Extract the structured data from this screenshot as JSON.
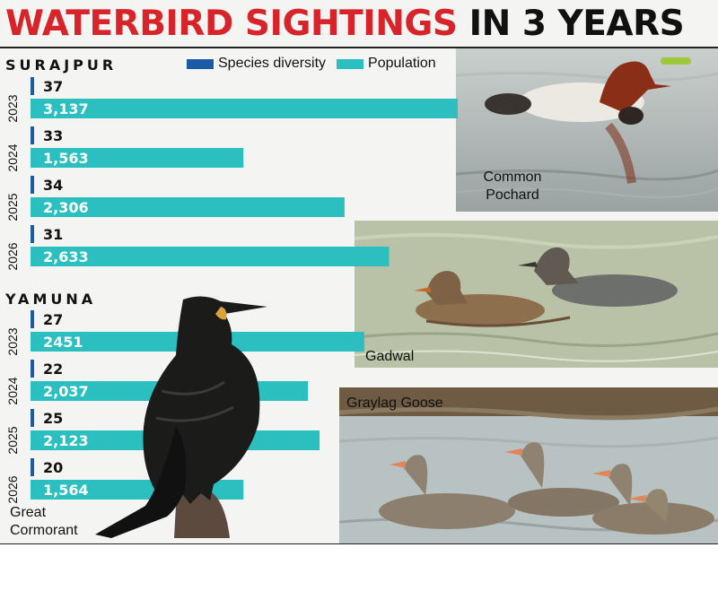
{
  "title": {
    "part1": "WATERBIRD SIGHTINGS",
    "part2": "IN 3 YEARS"
  },
  "legend": {
    "diversity": "Species diversity",
    "population": "Population"
  },
  "colors": {
    "diversity": "#1a5aa6",
    "population": "#2bbfbf",
    "title_red": "#d7232a"
  },
  "photos": {
    "pochard": "Common\nPochard",
    "gadwal": "Gadwal",
    "graylag": "Graylag Goose",
    "cormorant": "Great\nCormorant"
  },
  "chart_data": {
    "type": "bar",
    "orientation": "horizontal",
    "groups": [
      {
        "name": "SURAJPUR",
        "categories": [
          "2023",
          "2024",
          "2025",
          "2026"
        ],
        "series": [
          {
            "name": "Species diversity",
            "values": [
              37,
              33,
              34,
              31
            ],
            "labels": [
              "37",
              "33",
              "34",
              "31"
            ]
          },
          {
            "name": "Population",
            "values": [
              3137,
              1563,
              2306,
              2633
            ],
            "labels": [
              "3,137",
              "1,563",
              "2,306",
              "2,633"
            ]
          }
        ]
      },
      {
        "name": "YAMUNA",
        "categories": [
          "2023",
          "2024",
          "2025",
          "2026"
        ],
        "series": [
          {
            "name": "Species diversity",
            "values": [
              27,
              22,
              25,
              20
            ],
            "labels": [
              "27",
              "22",
              "25",
              "20"
            ]
          },
          {
            "name": "Population",
            "values": [
              2451,
              2037,
              2123,
              1564
            ],
            "labels": [
              "2451",
              "2,037",
              "2,123",
              "1,564"
            ]
          }
        ]
      }
    ],
    "grid": false,
    "legend_position": "top"
  }
}
